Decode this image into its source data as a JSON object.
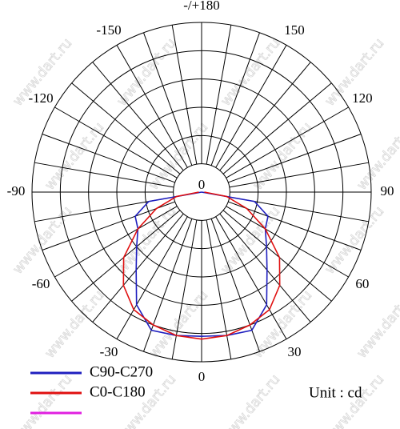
{
  "chart_data": {
    "type": "polar",
    "watermark": "www.dart.ru",
    "center_label": "0",
    "unit": "Unit : cd",
    "x": [
      -90,
      -80,
      -70,
      -60,
      -50,
      -40,
      -30,
      -20,
      -10,
      0,
      10,
      20,
      30,
      40,
      50,
      60,
      70,
      80,
      90
    ],
    "series": [
      {
        "name": "C90-C270",
        "color": "#1f1fbf",
        "values": [
          0,
          1.9,
          2.5,
          2.6,
          3.0,
          3.6,
          4.6,
          5.2,
          5.15,
          5.1,
          5.15,
          5.2,
          4.6,
          3.6,
          3.0,
          2.6,
          2.5,
          1.9,
          0
        ]
      },
      {
        "name": "C0-C180",
        "color": "#e01010",
        "values": [
          0.1,
          0.9,
          1.7,
          2.6,
          3.6,
          4.3,
          4.8,
          5.0,
          5.15,
          5.2,
          5.15,
          5.0,
          4.8,
          4.3,
          3.6,
          2.6,
          1.7,
          0.9,
          0.1
        ]
      },
      {
        "name": null,
        "color": "#e020e0",
        "values": [
          null,
          null,
          null,
          null,
          null,
          null,
          null,
          null,
          null,
          null,
          null,
          null,
          null,
          null,
          null,
          null,
          null,
          null,
          null
        ]
      }
    ],
    "rlim": [
      0,
      6
    ],
    "rticks": [
      1,
      2,
      3,
      4,
      5,
      6
    ],
    "spoke_step": 10,
    "angle_ticks": [
      0,
      30,
      60,
      90,
      120,
      150,
      {
        "value": 180,
        "label": "-/+180"
      },
      -150,
      -120,
      -90,
      -60,
      -30
    ]
  }
}
